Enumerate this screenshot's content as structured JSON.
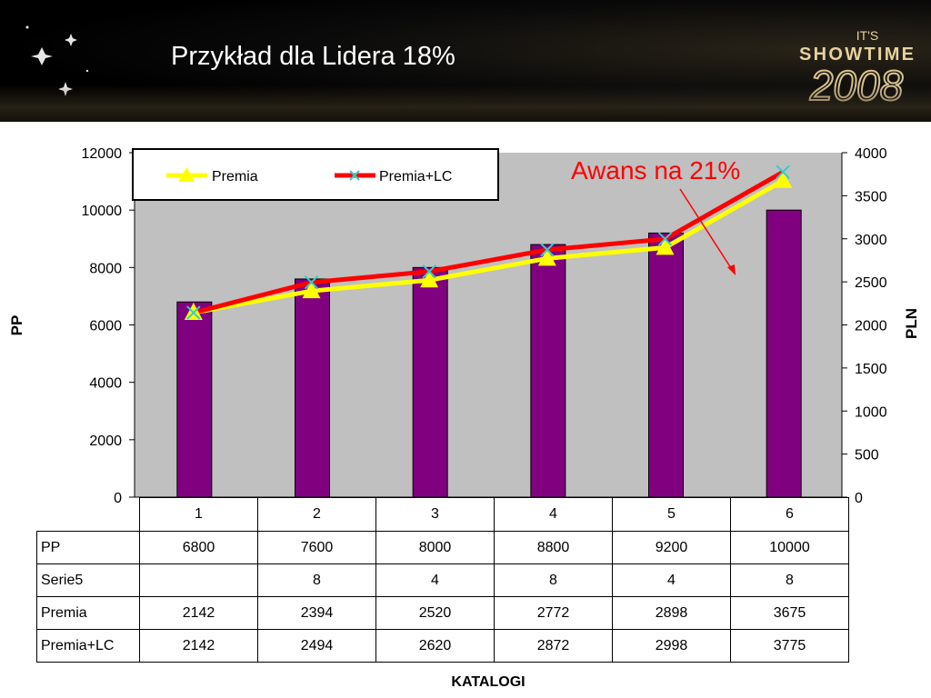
{
  "slide": {
    "title": "Przykład dla Lidera 18%",
    "logo_text_top": "IT'S",
    "logo_text_mid": "SHOWTIME",
    "logo_text_year": "2008"
  },
  "colors": {
    "bar": "#800080",
    "premia": "#ffff00",
    "premia_lc": "#ff0000",
    "marker_x": "#33cccc",
    "annotation": "#ff0000",
    "plot_bg": "#c0c0c0"
  },
  "chart_data": {
    "type": "bar",
    "categories": [
      "1",
      "2",
      "3",
      "4",
      "5",
      "6"
    ],
    "xlabel": "KATALOGI",
    "ylabel": "PP",
    "y2label": "PLN",
    "ylim": [
      0,
      12000
    ],
    "y_ticks": [
      "0",
      "2000",
      "4000",
      "6000",
      "8000",
      "10000",
      "12000"
    ],
    "y2lim": [
      0,
      4000
    ],
    "y2_ticks": [
      "0",
      "500",
      "1000",
      "1500",
      "2000",
      "2500",
      "3000",
      "3500",
      "4000"
    ],
    "legend_position": "top-left",
    "annotation": "Awans na 21%",
    "series": [
      {
        "name": "PP",
        "kind": "bar",
        "axis": "left",
        "values": [
          6800,
          7600,
          8000,
          8800,
          9200,
          10000
        ]
      },
      {
        "name": "Serie5",
        "kind": "none",
        "values": [
          null,
          8,
          4,
          8,
          4,
          8
        ]
      },
      {
        "name": "Premia",
        "kind": "line",
        "axis": "right",
        "marker": "triangle",
        "values": [
          2142,
          2394,
          2520,
          2772,
          2898,
          3675
        ]
      },
      {
        "name": "Premia+LC",
        "kind": "line",
        "axis": "right",
        "marker": "x",
        "values": [
          2142,
          2494,
          2620,
          2872,
          2998,
          3775
        ]
      }
    ],
    "table": {
      "rows": [
        {
          "label": "PP",
          "values": [
            "6800",
            "7600",
            "8000",
            "8800",
            "9200",
            "10000"
          ]
        },
        {
          "label": "Serie5",
          "values": [
            "",
            "8",
            "4",
            "8",
            "4",
            "8"
          ]
        },
        {
          "label": "Premia",
          "values": [
            "2142",
            "2394",
            "2520",
            "2772",
            "2898",
            "3675"
          ]
        },
        {
          "label": "Premia+LC",
          "values": [
            "2142",
            "2494",
            "2620",
            "2872",
            "2998",
            "3775"
          ]
        }
      ]
    }
  }
}
